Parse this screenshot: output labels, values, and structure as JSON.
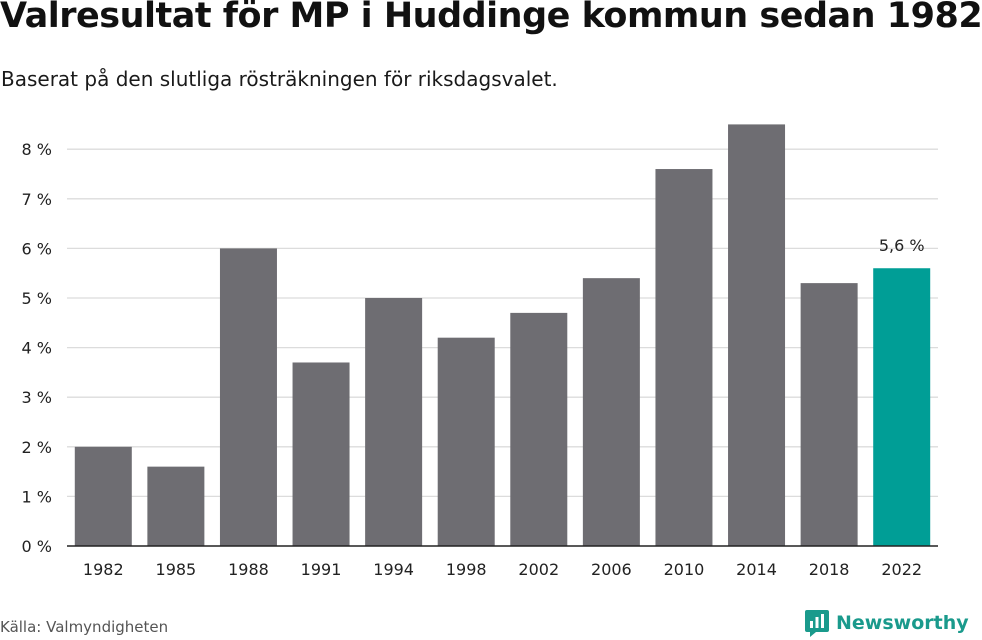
{
  "header": {
    "title": "Valresultat för MP i Huddinge kommun sedan 1982",
    "subtitle": "Baserat på den slutliga rösträkningen för riksdagsvalet."
  },
  "footer": {
    "source": "Källa: Valmyndigheten",
    "brand": "Newsworthy"
  },
  "colors": {
    "bar": "#6e6d72",
    "highlight": "#009e96",
    "grid": "#dcdcdc",
    "axis": "#222222",
    "brand": "#1a9a8c"
  },
  "icons": {
    "brand_logo": "newsworthy-logo-icon"
  },
  "chart_data": {
    "type": "bar",
    "categories": [
      "1982",
      "1985",
      "1988",
      "1991",
      "1994",
      "1998",
      "2002",
      "2006",
      "2010",
      "2014",
      "2018",
      "2022"
    ],
    "values": [
      2.0,
      1.6,
      6.0,
      3.7,
      5.0,
      4.2,
      4.7,
      5.4,
      7.6,
      8.5,
      5.3,
      5.6
    ],
    "highlight_index": 11,
    "data_labels": [
      {
        "index": 11,
        "text": "5,6 %"
      }
    ],
    "yticks": [
      "0 %",
      "1 %",
      "2 %",
      "3 %",
      "4 %",
      "5 %",
      "6 %",
      "7 %",
      "8 %"
    ],
    "ylim": [
      0,
      8.9
    ],
    "grid": true,
    "title": "Valresultat för MP i Huddinge kommun sedan 1982",
    "subtitle": "Baserat på den slutliga rösträkningen för riksdagsvalet.",
    "xlabel": "",
    "ylabel": ""
  }
}
